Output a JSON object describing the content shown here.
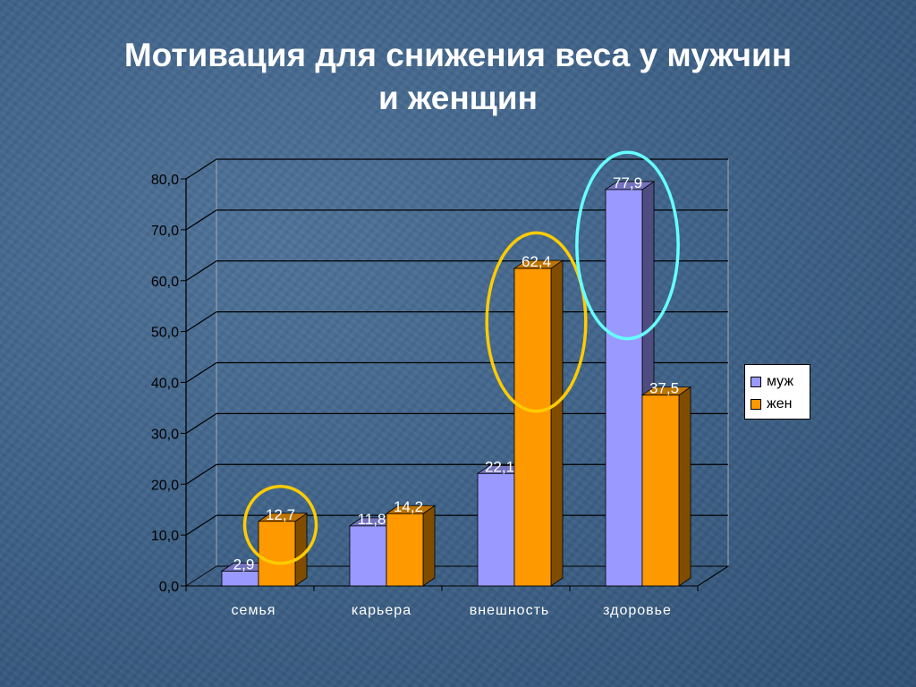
{
  "title_line1": "Мотивация для снижения веса у мужчин",
  "title_line2": "и женщин",
  "chart_data": {
    "type": "bar",
    "title": "Мотивация для снижения веса у мужчин и женщин",
    "categories": [
      "семья",
      "карьера",
      "внешность",
      "здоровье"
    ],
    "series": [
      {
        "name": "муж",
        "values": [
          2.9,
          11.8,
          22.1,
          77.9
        ],
        "labels": [
          "2,9",
          "11,8",
          "22,1",
          "77,9"
        ],
        "color": "#9999ff"
      },
      {
        "name": "жен",
        "values": [
          12.7,
          14.2,
          62.4,
          37.5
        ],
        "labels": [
          "12,7",
          "14,2",
          "62,4",
          "37,5"
        ],
        "color": "#ff9900"
      }
    ],
    "ylim": [
      0,
      80
    ],
    "yticks": [
      "0,0",
      "10,0",
      "20,0",
      "30,0",
      "40,0",
      "50,0",
      "60,0",
      "70,0",
      "80,0"
    ],
    "grid": true,
    "legend_position": "right",
    "highlights": [
      {
        "category": "семья",
        "series": "жен",
        "color": "#ffcc00"
      },
      {
        "category": "внешность",
        "series": "жен",
        "color": "#ffcc00"
      },
      {
        "category": "здоровье",
        "series": "муж",
        "color": "#66ffff"
      }
    ]
  }
}
